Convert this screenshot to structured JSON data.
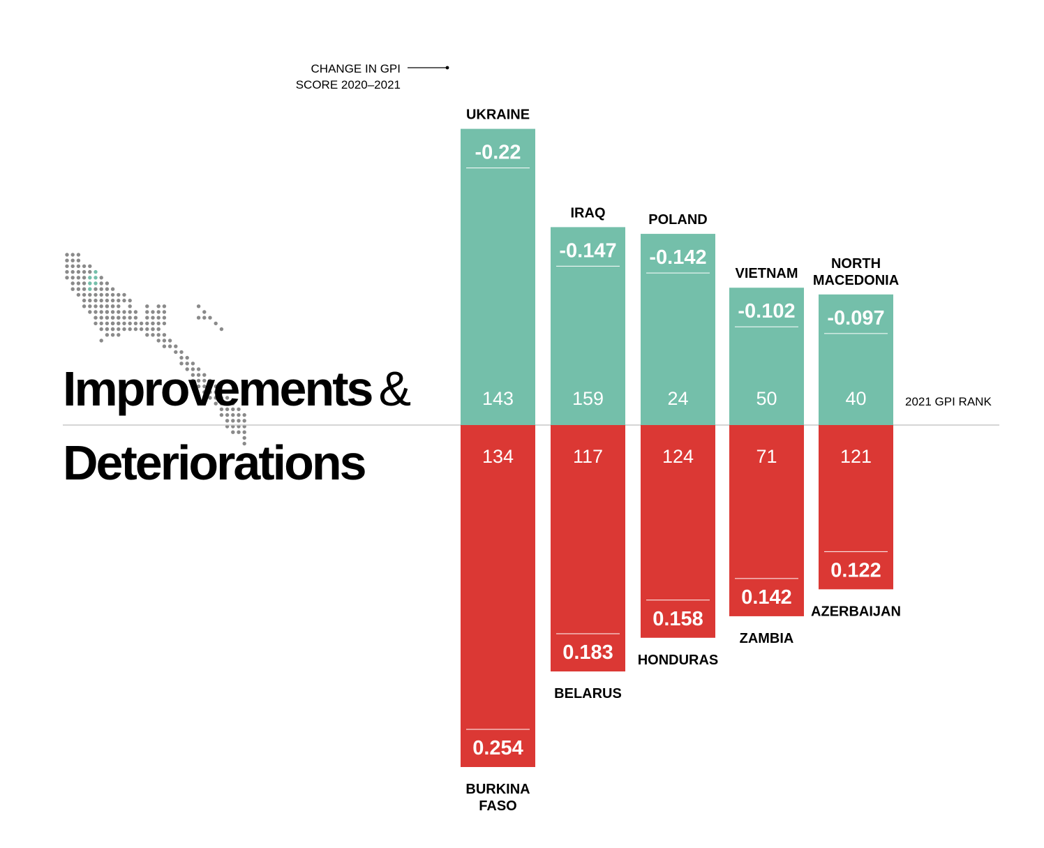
{
  "colors": {
    "improvement": "#74bfaa",
    "deterioration": "#db3834",
    "baseline": "#c7c7c7",
    "text": "#000000",
    "bar_text": "#ffffff",
    "map_dot": "#8a8a8a"
  },
  "icons": [
    "world-map-dot-icon"
  ],
  "title": {
    "line1": "Improvements",
    "ampersand": "&",
    "line2": "Deteriorations"
  },
  "annotation": {
    "change_line1": "CHANGE IN GPI",
    "change_line2": "SCORE 2020–2021",
    "rank_label": "2021 GPI RANK"
  },
  "chart_data": {
    "type": "bar",
    "scale_max": 0.254,
    "series": [
      {
        "name": "Improvements",
        "items": [
          {
            "country": [
              "UKRAINE"
            ],
            "change": -0.22,
            "change_label": "-0.22",
            "rank": "143"
          },
          {
            "country": [
              "IRAQ"
            ],
            "change": -0.147,
            "change_label": "-0.147",
            "rank": "159"
          },
          {
            "country": [
              "POLAND"
            ],
            "change": -0.142,
            "change_label": "-0.142",
            "rank": "24"
          },
          {
            "country": [
              "VIETNAM"
            ],
            "change": -0.102,
            "change_label": "-0.102",
            "rank": "50"
          },
          {
            "country": [
              "NORTH",
              "MACEDONIA"
            ],
            "change": -0.097,
            "change_label": "-0.097",
            "rank": "40"
          }
        ]
      },
      {
        "name": "Deteriorations",
        "items": [
          {
            "country": [
              "BURKINA",
              "FASO"
            ],
            "change": 0.254,
            "change_label": "0.254",
            "rank": "134"
          },
          {
            "country": [
              "BELARUS"
            ],
            "change": 0.183,
            "change_label": "0.183",
            "rank": "117"
          },
          {
            "country": [
              "HONDURAS"
            ],
            "change": 0.158,
            "change_label": "0.158",
            "rank": "124"
          },
          {
            "country": [
              "ZAMBIA"
            ],
            "change": 0.142,
            "change_label": "0.142",
            "rank": "71"
          },
          {
            "country": [
              "AZERBAIJAN"
            ],
            "change": 0.122,
            "change_label": "0.122",
            "rank": "121"
          }
        ]
      }
    ]
  }
}
